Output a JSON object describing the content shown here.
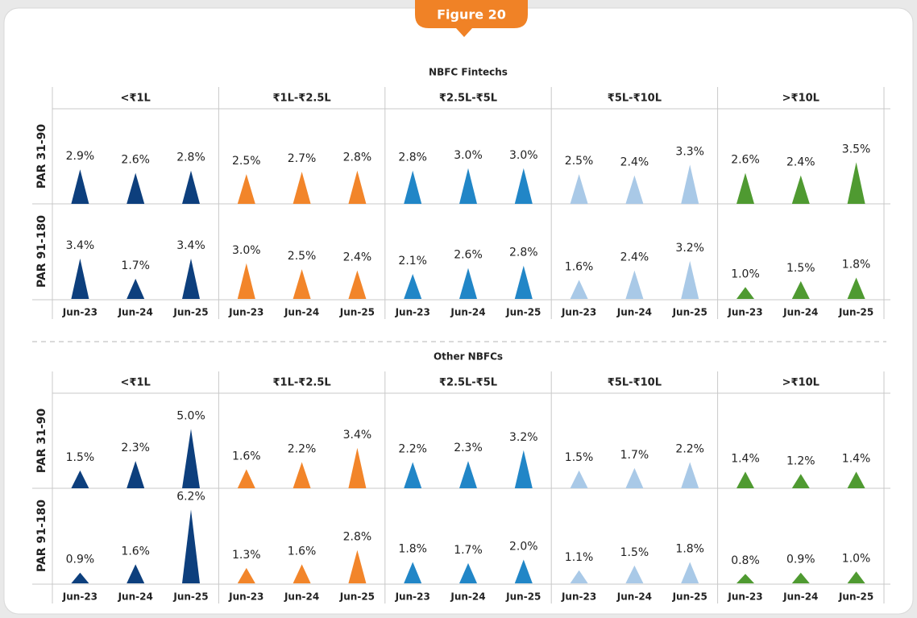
{
  "figure_label": "Figure 20",
  "chart_data": [
    {
      "type": "triangle",
      "title": "NBFC Fintechs",
      "rows": [
        "PAR 31-90",
        "PAR 91-180"
      ],
      "categories": [
        "Jun-23",
        "Jun-24",
        "Jun-25"
      ],
      "ylim": [
        0,
        8
      ],
      "series": [
        {
          "name": "<₹1L",
          "color": "#0d3f7d",
          "values": [
            [
              2.9,
              2.6,
              2.8
            ],
            [
              3.4,
              1.7,
              3.4
            ]
          ],
          "value_labels": [
            [
              "2.9%",
              "2.6%",
              "2.8%"
            ],
            [
              "3.4%",
              "1.7%",
              "3.4%"
            ]
          ]
        },
        {
          "name": "₹1L-₹2.5L",
          "color": "#f2852a",
          "values": [
            [
              2.5,
              2.7,
              2.8
            ],
            [
              3.0,
              2.5,
              2.4
            ]
          ],
          "value_labels": [
            [
              "2.5%",
              "2.7%",
              "2.8%"
            ],
            [
              "3.0%",
              "2.5%",
              "2.4%"
            ]
          ]
        },
        {
          "name": "₹2.5L-₹5L",
          "color": "#2186c7",
          "values": [
            [
              2.8,
              3.0,
              3.0
            ],
            [
              2.1,
              2.6,
              2.8
            ]
          ],
          "value_labels": [
            [
              "2.8%",
              "3.0%",
              "3.0%"
            ],
            [
              "2.1%",
              "2.6%",
              "2.8%"
            ]
          ]
        },
        {
          "name": "₹5L-₹10L",
          "color": "#a9c9e7",
          "values": [
            [
              2.5,
              2.4,
              3.3
            ],
            [
              1.6,
              2.4,
              3.2
            ]
          ],
          "value_labels": [
            [
              "2.5%",
              "2.4%",
              "3.3%"
            ],
            [
              "1.6%",
              "2.4%",
              "3.2%"
            ]
          ]
        },
        {
          "name": ">₹10L",
          "color": "#4f9a31",
          "values": [
            [
              2.6,
              2.4,
              3.5
            ],
            [
              1.0,
              1.5,
              1.8
            ]
          ],
          "value_labels": [
            [
              "2.6%",
              "2.4%",
              "3.5%"
            ],
            [
              "1.0%",
              "1.5%",
              "1.8%"
            ]
          ]
        }
      ]
    },
    {
      "type": "triangle",
      "title": "Other NBFCs",
      "rows": [
        "PAR 31-90",
        "PAR 91-180"
      ],
      "categories": [
        "Jun-23",
        "Jun-24",
        "Jun-25"
      ],
      "ylim": [
        0,
        8
      ],
      "series": [
        {
          "name": "<₹1L",
          "color": "#0d3f7d",
          "values": [
            [
              1.5,
              2.3,
              5.0
            ],
            [
              0.9,
              1.6,
              6.2
            ]
          ],
          "value_labels": [
            [
              "1.5%",
              "2.3%",
              "5.0%"
            ],
            [
              "0.9%",
              "1.6%",
              "6.2%"
            ]
          ]
        },
        {
          "name": "₹1L-₹2.5L",
          "color": "#f2852a",
          "values": [
            [
              1.6,
              2.2,
              3.4
            ],
            [
              1.3,
              1.6,
              2.8
            ]
          ],
          "value_labels": [
            [
              "1.6%",
              "2.2%",
              "3.4%"
            ],
            [
              "1.3%",
              "1.6%",
              "2.8%"
            ]
          ]
        },
        {
          "name": "₹2.5L-₹5L",
          "color": "#2186c7",
          "values": [
            [
              2.2,
              2.3,
              3.2
            ],
            [
              1.8,
              1.7,
              2.0
            ]
          ],
          "value_labels": [
            [
              "2.2%",
              "2.3%",
              "3.2%"
            ],
            [
              "1.8%",
              "1.7%",
              "2.0%"
            ]
          ]
        },
        {
          "name": "₹5L-₹10L",
          "color": "#a9c9e7",
          "values": [
            [
              1.5,
              1.7,
              2.2
            ],
            [
              1.1,
              1.5,
              1.8
            ]
          ],
          "value_labels": [
            [
              "1.5%",
              "1.7%",
              "2.2%"
            ],
            [
              "1.1%",
              "1.5%",
              "1.8%"
            ]
          ]
        },
        {
          "name": ">₹10L",
          "color": "#4f9a31",
          "values": [
            [
              1.4,
              1.2,
              1.4
            ],
            [
              0.8,
              0.9,
              1.0
            ]
          ],
          "value_labels": [
            [
              "1.4%",
              "1.2%",
              "1.4%"
            ],
            [
              "0.8%",
              "0.9%",
              "1.0%"
            ]
          ]
        }
      ]
    }
  ]
}
